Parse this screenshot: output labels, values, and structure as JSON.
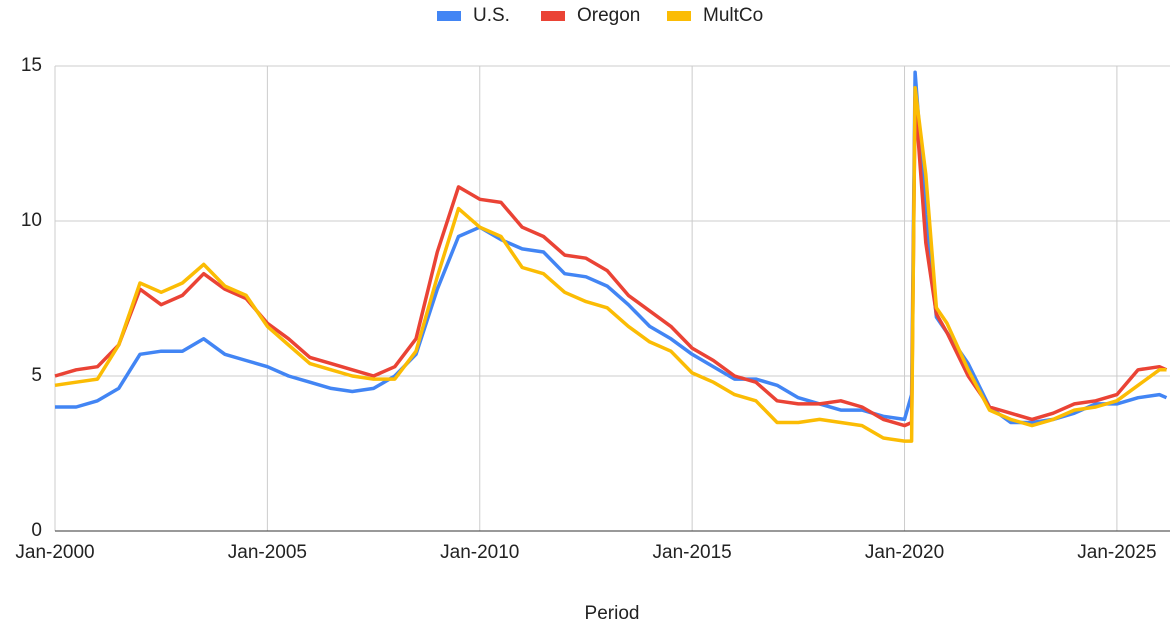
{
  "chart_data": {
    "type": "line",
    "x_label": "Period",
    "x": [
      "Jan-2000",
      "Jul-2000",
      "Jan-2001",
      "Jul-2001",
      "Jan-2002",
      "Jul-2002",
      "Jan-2003",
      "Jul-2003",
      "Jan-2004",
      "Jul-2004",
      "Jan-2005",
      "Jul-2005",
      "Jan-2006",
      "Jul-2006",
      "Jan-2007",
      "Jul-2007",
      "Jan-2008",
      "Jul-2008",
      "Jan-2009",
      "Jul-2009",
      "Jan-2010",
      "Jul-2010",
      "Jan-2011",
      "Jul-2011",
      "Jan-2012",
      "Jul-2012",
      "Jan-2013",
      "Jul-2013",
      "Jan-2014",
      "Jul-2014",
      "Jan-2015",
      "Jul-2015",
      "Jan-2016",
      "Jul-2016",
      "Jan-2017",
      "Jul-2017",
      "Jan-2018",
      "Jul-2018",
      "Jan-2019",
      "Jul-2019",
      "Jan-2020",
      "Mar-2020",
      "Apr-2020",
      "Jul-2020",
      "Oct-2020",
      "Jan-2021",
      "Jul-2021",
      "Jan-2022",
      "Jul-2022",
      "Jan-2023",
      "Jul-2023",
      "Jan-2024",
      "Jul-2024",
      "Jan-2025",
      "Jul-2025",
      "Jan-2026",
      "Mar-2026"
    ],
    "series": [
      {
        "name": "U.S.",
        "color": "#4285f4",
        "values": [
          4.0,
          4.0,
          4.2,
          4.6,
          5.7,
          5.8,
          5.8,
          6.2,
          5.7,
          5.5,
          5.3,
          5.0,
          4.8,
          4.6,
          4.5,
          4.6,
          5.0,
          5.7,
          7.8,
          9.5,
          9.8,
          9.4,
          9.1,
          9.0,
          8.3,
          8.2,
          7.9,
          7.3,
          6.6,
          6.2,
          5.7,
          5.3,
          4.9,
          4.9,
          4.7,
          4.3,
          4.1,
          3.9,
          3.9,
          3.7,
          3.6,
          4.4,
          14.8,
          10.2,
          6.9,
          6.4,
          5.4,
          4.0,
          3.5,
          3.5,
          3.6,
          3.8,
          4.1,
          4.1,
          4.3,
          4.4,
          4.3
        ]
      },
      {
        "name": "Oregon",
        "color": "#ea4335",
        "values": [
          5.0,
          5.2,
          5.3,
          6.0,
          7.8,
          7.3,
          7.6,
          8.3,
          7.8,
          7.5,
          6.7,
          6.2,
          5.6,
          5.4,
          5.2,
          5.0,
          5.3,
          6.2,
          9.0,
          11.1,
          10.7,
          10.6,
          9.8,
          9.5,
          8.9,
          8.8,
          8.4,
          7.6,
          7.1,
          6.6,
          5.9,
          5.5,
          5.0,
          4.8,
          4.2,
          4.1,
          4.1,
          4.2,
          4.0,
          3.6,
          3.4,
          3.5,
          14.0,
          9.3,
          7.0,
          6.4,
          5.0,
          4.0,
          3.8,
          3.6,
          3.8,
          4.1,
          4.2,
          4.4,
          5.2,
          5.3,
          5.2
        ]
      },
      {
        "name": "MultCo",
        "color": "#fbbc04",
        "values": [
          4.7,
          4.8,
          4.9,
          6.0,
          8.0,
          7.7,
          8.0,
          8.6,
          7.9,
          7.6,
          6.6,
          6.0,
          5.4,
          5.2,
          5.0,
          4.9,
          4.9,
          5.8,
          8.2,
          10.4,
          9.8,
          9.5,
          8.5,
          8.3,
          7.7,
          7.4,
          7.2,
          6.6,
          6.1,
          5.8,
          5.1,
          4.8,
          4.4,
          4.2,
          3.5,
          3.5,
          3.6,
          3.5,
          3.4,
          3.0,
          2.9,
          2.9,
          14.3,
          11.5,
          7.2,
          6.7,
          5.2,
          3.9,
          3.6,
          3.4,
          3.6,
          3.9,
          4.0,
          4.2,
          4.7,
          5.2,
          5.2
        ]
      }
    ],
    "xlim": [
      "Jan-2000",
      "Apr-2026"
    ],
    "xticks": [
      "Jan-2000",
      "Jan-2005",
      "Jan-2010",
      "Jan-2015",
      "Jan-2020",
      "Jan-2025"
    ],
    "ylim": [
      0,
      15
    ],
    "yticks": [
      0,
      5,
      10,
      15
    ],
    "grid": true,
    "legend": "top"
  }
}
